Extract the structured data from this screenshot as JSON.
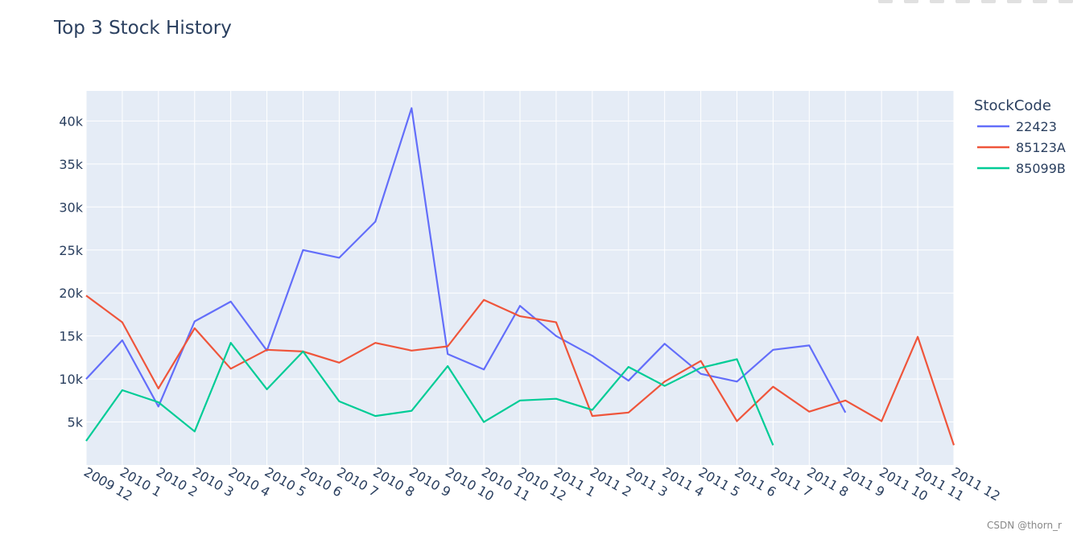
{
  "toolbar": {
    "icons": [
      "camera-icon",
      "zoom-icon",
      "pan-icon",
      "zoom-in-icon",
      "zoom-out-icon",
      "autoscale-icon",
      "reset-icon",
      "plotly-logo-icon"
    ]
  },
  "watermark": "CSDN @thorn_r",
  "colors": {
    "plot_bg": "#e5ecf6",
    "grid": "#ffffff",
    "text": "#2a3f5f"
  },
  "chart_data": {
    "type": "line",
    "title": "Top 3 Stock History",
    "xlabel": "",
    "ylabel": "",
    "legend_title": "StockCode",
    "legend_position": "top-right",
    "grid": true,
    "ylim": [
      0,
      43500
    ],
    "y_ticks": [
      5000,
      10000,
      15000,
      20000,
      25000,
      30000,
      35000,
      40000
    ],
    "y_tick_labels": [
      "5k",
      "10k",
      "15k",
      "20k",
      "25k",
      "30k",
      "35k",
      "40k"
    ],
    "categories": [
      "2009 12",
      "2010 1",
      "2010 2",
      "2010 3",
      "2010 4",
      "2010 5",
      "2010 6",
      "2010 7",
      "2010 8",
      "2010 9",
      "2010 10",
      "2010 11",
      "2010 12",
      "2011 1",
      "2011 2",
      "2011 3",
      "2011 4",
      "2011 5",
      "2011 6",
      "2011 7",
      "2011 8",
      "2011 9",
      "2011 10",
      "2011 11",
      "2011 12"
    ],
    "series": [
      {
        "name": "22423",
        "color": "#636efa",
        "values": [
          10000,
          14500,
          6800,
          16700,
          19000,
          13300,
          25000,
          24100,
          28300,
          41500,
          12900,
          11100,
          18500,
          15000,
          12700,
          9800,
          14100,
          10600,
          9700,
          13400,
          13900,
          6100,
          null,
          null,
          null
        ]
      },
      {
        "name": "85123A",
        "color": "#ef553b",
        "values": [
          19700,
          16600,
          8900,
          15900,
          11200,
          13400,
          13200,
          11900,
          14200,
          13300,
          13800,
          19200,
          17300,
          16600,
          5700,
          6100,
          9700,
          12100,
          5100,
          9100,
          6200,
          7500,
          5100,
          14900,
          2300
        ]
      },
      {
        "name": "85099B",
        "color": "#00cc96",
        "values": [
          2800,
          8700,
          7300,
          3900,
          14200,
          8800,
          13200,
          7400,
          5700,
          6300,
          11500,
          5000,
          7500,
          7700,
          6400,
          11400,
          9200,
          11300,
          12300,
          2300,
          null,
          null,
          null,
          null,
          null
        ]
      }
    ]
  }
}
